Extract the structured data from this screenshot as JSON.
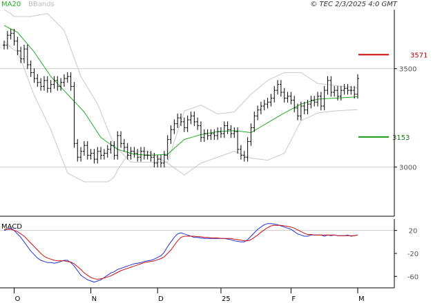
{
  "header": {
    "legend_ma": "MA20",
    "legend_bb": "BBands",
    "source": "© TEC 2/3/2025 4:0 GMT"
  },
  "colors": {
    "ma": "#22aa22",
    "bbands": "#c8c8c8",
    "price": "#000000",
    "resistance": "#cc0000",
    "support": "#119911",
    "macd": "#1f2fd6",
    "signal": "#cc1111",
    "grid": "#cccccc",
    "axis": "#000000"
  },
  "chart_data": [
    {
      "type": "line",
      "name": "price-panel",
      "ylim": [
        2750,
        3800
      ],
      "y_ticks": [
        {
          "value": 3500,
          "label": "3500"
        },
        {
          "value": 3000,
          "label": "3000"
        }
      ],
      "x_ticks": [
        {
          "index": 3,
          "label": "O"
        },
        {
          "index": 26,
          "label": "N"
        },
        {
          "index": 46,
          "label": "D"
        },
        {
          "index": 65,
          "label": "25"
        },
        {
          "index": 86,
          "label": "F"
        },
        {
          "index": 106,
          "label": "M"
        }
      ],
      "levels": [
        {
          "name": "resistance",
          "value": 3571,
          "label": "3571"
        },
        {
          "name": "support",
          "value": 3153,
          "label": "3153"
        }
      ],
      "close": [
        3620,
        3670,
        3680,
        3640,
        3590,
        3550,
        3600,
        3520,
        3480,
        3450,
        3430,
        3410,
        3440,
        3400,
        3420,
        3440,
        3410,
        3430,
        3450,
        3460,
        3410,
        3120,
        3050,
        3080,
        3110,
        3060,
        3070,
        3040,
        3080,
        3060,
        3070,
        3090,
        3110,
        3060,
        3160,
        3120,
        3100,
        3060,
        3080,
        3070,
        3050,
        3080,
        3060,
        3060,
        3050,
        3020,
        3040,
        3020,
        3060,
        3140,
        3190,
        3220,
        3250,
        3230,
        3200,
        3240,
        3260,
        3230,
        3210,
        3150,
        3170,
        3160,
        3170,
        3160,
        3180,
        3170,
        3210,
        3190,
        3170,
        3180,
        3090,
        3060,
        3050,
        3130,
        3200,
        3260,
        3290,
        3310,
        3320,
        3330,
        3350,
        3390,
        3420,
        3380,
        3350,
        3360,
        3340,
        3300,
        3260,
        3310,
        3290,
        3320,
        3340,
        3330,
        3360,
        3310,
        3390,
        3440,
        3380,
        3390,
        3360,
        3390,
        3400,
        3390,
        3390,
        3370,
        3450
      ],
      "ma20": [
        3720,
        3711,
        3702,
        3694,
        3685,
        3665,
        3645,
        3625,
        3605,
        3585,
        3560,
        3535,
        3510,
        3485,
        3460,
        3442,
        3424,
        3406,
        3388,
        3370,
        3352,
        3334,
        3316,
        3298,
        3280,
        3254,
        3228,
        3202,
        3176,
        3150,
        3138,
        3126,
        3114,
        3102,
        3090,
        3085,
        3080,
        3075,
        3070,
        3065,
        3064,
        3063,
        3062,
        3061,
        3060,
        3061,
        3062,
        3063,
        3064,
        3065,
        3080,
        3095,
        3110,
        3125,
        3140,
        3145,
        3150,
        3155,
        3160,
        3165,
        3168,
        3171,
        3174,
        3177,
        3180,
        3181,
        3182,
        3183,
        3184,
        3185,
        3183,
        3181,
        3179,
        3177,
        3175,
        3185,
        3195,
        3205,
        3215,
        3225,
        3235,
        3245,
        3255,
        3265,
        3275,
        3284,
        3293,
        3302,
        3311,
        3320,
        3325,
        3330,
        3335,
        3340,
        3345,
        3346,
        3347,
        3348,
        3349,
        3350,
        3351,
        3352,
        3353,
        3354,
        3355,
        3356,
        3358
      ],
      "bb_upper": [
        3800,
        3790,
        3780,
        3765,
        3765,
        3765,
        3765,
        3765,
        3765,
        3768,
        3771,
        3774,
        3777,
        3780,
        3763,
        3746,
        3729,
        3712,
        3695,
        3648,
        3601,
        3554,
        3507,
        3460,
        3432,
        3404,
        3376,
        3348,
        3320,
        3278,
        3236,
        3194,
        3152,
        3110,
        3093,
        3076,
        3059,
        3042,
        3025,
        3025,
        3025,
        3025,
        3025,
        3025,
        3025,
        3025,
        3025,
        3025,
        3025,
        3025,
        3077,
        3129,
        3181,
        3233,
        3285,
        3291,
        3297,
        3303,
        3309,
        3315,
        3306,
        3297,
        3288,
        3279,
        3270,
        3272,
        3274,
        3276,
        3278,
        3280,
        3298,
        3316,
        3334,
        3352,
        3370,
        3384,
        3398,
        3412,
        3426,
        3440,
        3448,
        3456,
        3464,
        3472,
        3480,
        3480,
        3480,
        3480,
        3480,
        3480,
        3469,
        3458,
        3447,
        3436,
        3425,
        3423,
        3421,
        3419,
        3417,
        3415,
        3413,
        3411,
        3409,
        3407,
        3405,
        3403,
        3401
      ],
      "bb_lower": [
        3640,
        3624,
        3608,
        3595,
        3590,
        3545,
        3500,
        3455,
        3410,
        3365,
        3330,
        3295,
        3260,
        3225,
        3190,
        3146,
        3102,
        3058,
        3014,
        2970,
        2961,
        2952,
        2943,
        2934,
        2925,
        2925,
        2925,
        2925,
        2925,
        2925,
        2925,
        2925,
        2935,
        2950,
        2985,
        3010,
        3035,
        3060,
        3080,
        3080,
        3080,
        3080,
        3080,
        3080,
        3070,
        3060,
        3050,
        3040,
        3030,
        3020,
        3008,
        2996,
        2984,
        2972,
        2960,
        2972,
        2984,
        2996,
        3008,
        3020,
        3026,
        3032,
        3038,
        3044,
        3050,
        3056,
        3062,
        3068,
        3074,
        3080,
        3073,
        3066,
        3059,
        3052,
        3045,
        3043,
        3041,
        3039,
        3037,
        3035,
        3042,
        3049,
        3056,
        3063,
        3070,
        3103,
        3136,
        3169,
        3202,
        3235,
        3243,
        3251,
        3259,
        3267,
        3275,
        3277,
        3279,
        3281,
        3283,
        3285,
        3286,
        3287,
        3288,
        3289,
        3290,
        3291,
        3290
      ]
    },
    {
      "type": "line",
      "name": "macd-panel",
      "title": "MACD",
      "ylim": [
        -80,
        40
      ],
      "y_ticks": [
        {
          "value": 20,
          "label": "20"
        },
        {
          "value": -20,
          "label": "-20"
        },
        {
          "value": -60,
          "label": "-60"
        }
      ],
      "series": [
        {
          "key": "macd",
          "values": [
            20,
            22,
            24,
            20,
            14,
            8,
            0,
            -8,
            -16,
            -22,
            -28,
            -32,
            -34,
            -36,
            -36,
            -37,
            -36,
            -34,
            -32,
            -32,
            -36,
            -42,
            -50,
            -58,
            -62,
            -66,
            -68,
            -70,
            -68,
            -66,
            -62,
            -58,
            -54,
            -52,
            -48,
            -46,
            -44,
            -42,
            -40,
            -38,
            -37,
            -36,
            -34,
            -33,
            -32,
            -30,
            -27,
            -24,
            -18,
            -8,
            0,
            8,
            14,
            16,
            14,
            12,
            10,
            8,
            8,
            7,
            6,
            6,
            6,
            6,
            6,
            6,
            6,
            5,
            4,
            2,
            1,
            0,
            0,
            4,
            10,
            16,
            22,
            26,
            30,
            32,
            32,
            31,
            30,
            28,
            26,
            24,
            22,
            18,
            14,
            12,
            10,
            10,
            12,
            12,
            12,
            12,
            10,
            12,
            11,
            12,
            11,
            11,
            11,
            12,
            10,
            11,
            12
          ]
        },
        {
          "key": "signal",
          "values": [
            22,
            22,
            22,
            20,
            18,
            14,
            10,
            4,
            -2,
            -8,
            -14,
            -20,
            -25,
            -28,
            -30,
            -32,
            -33,
            -33,
            -33,
            -34,
            -35,
            -38,
            -43,
            -48,
            -54,
            -58,
            -62,
            -64,
            -65,
            -64,
            -63,
            -61,
            -59,
            -56,
            -53,
            -50,
            -48,
            -46,
            -44,
            -42,
            -40,
            -38,
            -36,
            -35,
            -34,
            -33,
            -31,
            -29,
            -26,
            -20,
            -14,
            -6,
            2,
            8,
            10,
            10,
            10,
            10,
            9,
            9,
            8,
            8,
            7,
            7,
            7,
            6,
            6,
            6,
            6,
            5,
            4,
            3,
            2,
            2,
            4,
            8,
            12,
            17,
            21,
            25,
            28,
            29,
            29,
            29,
            28,
            27,
            26,
            24,
            21,
            18,
            15,
            13,
            13,
            12,
            12,
            12,
            12,
            12,
            12,
            12,
            11,
            11,
            11,
            11,
            11,
            11,
            12
          ]
        }
      ]
    }
  ]
}
